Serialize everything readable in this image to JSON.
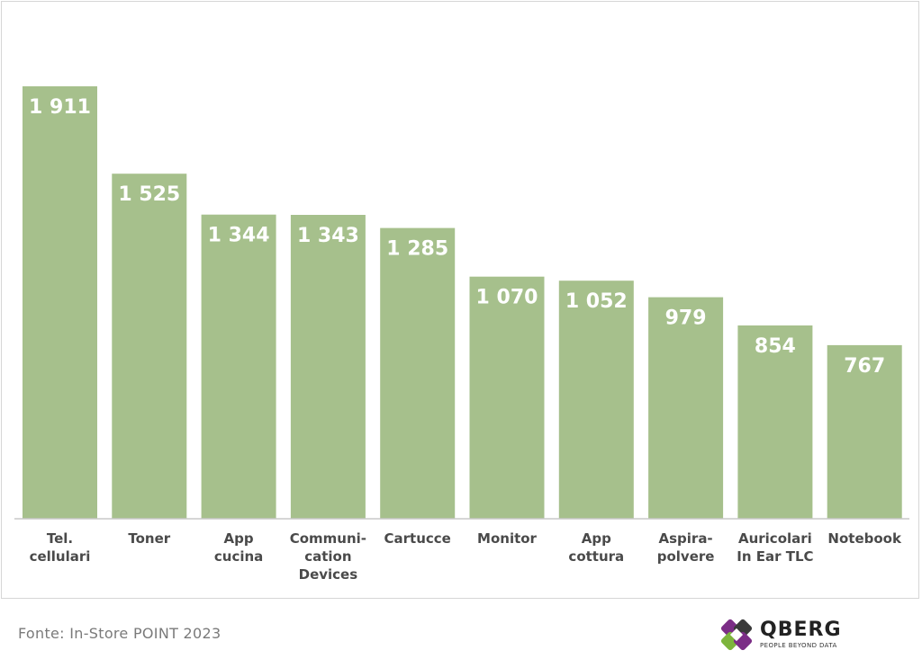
{
  "chart_data": {
    "type": "bar",
    "categories": [
      [
        "Tel.",
        "cellulari"
      ],
      [
        "Toner"
      ],
      [
        "App",
        "cucina"
      ],
      [
        "Communi-",
        "cation",
        "Devices"
      ],
      [
        "Cartucce"
      ],
      [
        "Monitor"
      ],
      [
        "App",
        "cottura"
      ],
      [
        "Aspira-",
        "polvere"
      ],
      [
        "Auricolari",
        "In Ear TLC"
      ],
      [
        "Notebook"
      ]
    ],
    "values": [
      1911,
      1525,
      1344,
      1343,
      1285,
      1070,
      1052,
      979,
      854,
      767
    ],
    "value_labels": [
      "1 911",
      "1 525",
      "1 344",
      "1 343",
      "1 285",
      "1 070",
      "1 052",
      "979",
      "854",
      "767"
    ],
    "ylim": [
      0,
      1911
    ],
    "bar_color": "#a6c08c",
    "axis_color": "#c8c8c8"
  },
  "footer": {
    "source": "Fonte: In-Store POINT 2023"
  },
  "logo": {
    "name": "QBERG",
    "tagline": "PEOPLE BEYOND DATA",
    "colors": [
      "#7b2d86",
      "#7db43c",
      "#3a3a3a"
    ]
  }
}
